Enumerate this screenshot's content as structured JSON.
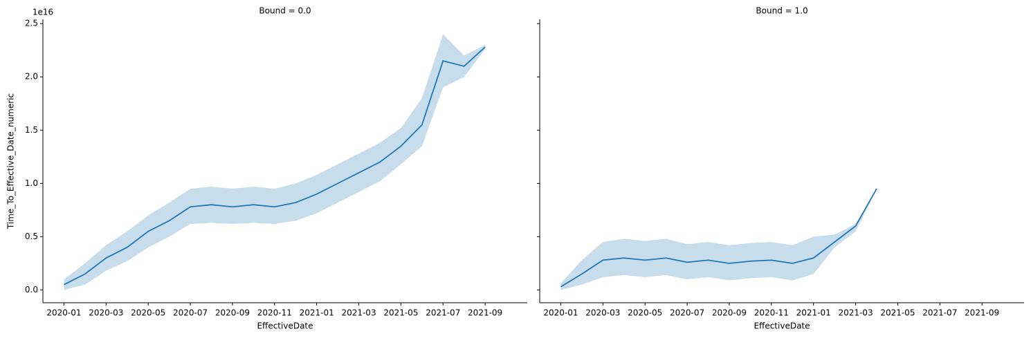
{
  "chart_data": [
    {
      "type": "line",
      "title": "Bound = 0.0",
      "x_label": "EffectiveDate",
      "y_label": "Time_To_Effective_Date_numeric",
      "y_offset": "1e16",
      "color": "#1f77b4",
      "x": [
        "2020-01",
        "2020-02",
        "2020-03",
        "2020-04",
        "2020-05",
        "2020-06",
        "2020-07",
        "2020-08",
        "2020-09",
        "2020-10",
        "2020-11",
        "2020-12",
        "2021-01",
        "2021-02",
        "2021-03",
        "2021-04",
        "2021-05",
        "2021-06",
        "2021-07",
        "2021-08",
        "2021-09"
      ],
      "values": [
        0.05,
        0.15,
        0.3,
        0.4,
        0.55,
        0.65,
        0.78,
        0.8,
        0.78,
        0.8,
        0.78,
        0.82,
        0.9,
        1.0,
        1.1,
        1.2,
        1.35,
        1.55,
        2.15,
        2.1,
        2.28
      ],
      "ci_lower": [
        0.0,
        0.05,
        0.18,
        0.27,
        0.4,
        0.5,
        0.62,
        0.63,
        0.62,
        0.63,
        0.62,
        0.65,
        0.72,
        0.82,
        0.92,
        1.02,
        1.18,
        1.35,
        1.9,
        2.0,
        2.26
      ],
      "ci_upper": [
        0.1,
        0.25,
        0.42,
        0.55,
        0.7,
        0.82,
        0.95,
        0.97,
        0.95,
        0.97,
        0.95,
        1.0,
        1.08,
        1.18,
        1.28,
        1.38,
        1.52,
        1.8,
        2.4,
        2.2,
        2.3
      ],
      "xlim": [
        "2019-12",
        "2021-11"
      ],
      "xticks": [
        "2020-01",
        "2020-03",
        "2020-05",
        "2020-07",
        "2020-09",
        "2020-11",
        "2021-01",
        "2021-03",
        "2021-05",
        "2021-07",
        "2021-09"
      ],
      "ylim": [
        -0.12,
        2.54
      ],
      "yticks": [
        {
          "value": 0,
          "label": "0.0"
        },
        {
          "value": 0.5,
          "label": "0.5"
        },
        {
          "value": 1,
          "label": "1.0"
        },
        {
          "value": 1.5,
          "label": "1.5"
        },
        {
          "value": 2,
          "label": "2.0"
        },
        {
          "value": 2.5,
          "label": "2.5"
        }
      ]
    },
    {
      "type": "line",
      "title": "Bound = 1.0",
      "x_label": "EffectiveDate",
      "color": "#1f77b4",
      "x": [
        "2020-01",
        "2020-02",
        "2020-03",
        "2020-04",
        "2020-05",
        "2020-06",
        "2020-07",
        "2020-08",
        "2020-09",
        "2020-10",
        "2020-11",
        "2020-12",
        "2021-01",
        "2021-02",
        "2021-03",
        "2021-04"
      ],
      "values": [
        0.03,
        0.15,
        0.28,
        0.3,
        0.28,
        0.3,
        0.26,
        0.28,
        0.25,
        0.27,
        0.28,
        0.25,
        0.3,
        0.45,
        0.6,
        0.95
      ],
      "ci_lower": [
        0.0,
        0.05,
        0.12,
        0.14,
        0.12,
        0.14,
        0.1,
        0.12,
        0.09,
        0.11,
        0.12,
        0.09,
        0.15,
        0.4,
        0.55,
        0.95
      ],
      "ci_upper": [
        0.06,
        0.28,
        0.45,
        0.48,
        0.46,
        0.48,
        0.43,
        0.45,
        0.42,
        0.44,
        0.45,
        0.42,
        0.5,
        0.52,
        0.62,
        0.95
      ],
      "xlim": [
        "2019-12",
        "2021-11"
      ],
      "xticks": [
        "2020-01",
        "2020-03",
        "2020-05",
        "2020-07",
        "2020-09",
        "2020-11",
        "2021-01",
        "2021-03",
        "2021-05",
        "2021-07",
        "2021-09"
      ],
      "ylim": [
        -0.12,
        2.54
      ],
      "yticks": [
        0,
        0.5,
        1,
        1.5,
        2,
        2.5
      ]
    }
  ]
}
